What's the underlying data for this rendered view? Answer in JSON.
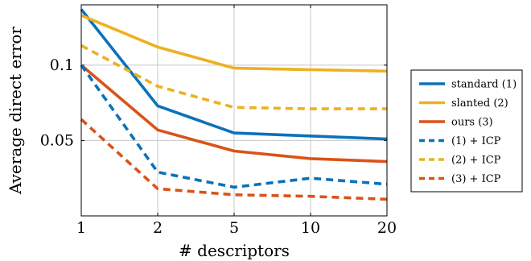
{
  "chart_data": {
    "type": "line",
    "xlabel": "# descriptors",
    "ylabel": "Average direct error",
    "categories": [
      "1",
      "2",
      "5",
      "10",
      "20"
    ],
    "y_ticks": [
      {
        "value": 0.05,
        "label": "0.05"
      },
      {
        "value": 0.1,
        "label": "0.1"
      }
    ],
    "ylim": [
      0,
      0.14
    ],
    "grid": true,
    "legend_position": "right",
    "series": [
      {
        "name": "standard (1)",
        "color": "#0a72ba",
        "dash": "solid",
        "values": [
          0.137,
          0.073,
          0.055,
          0.053,
          0.051
        ]
      },
      {
        "name": "slanted (2)",
        "color": "#edb120",
        "dash": "solid",
        "values": [
          0.133,
          0.112,
          0.098,
          0.097,
          0.096
        ]
      },
      {
        "name": "ours (3)",
        "color": "#d95319",
        "dash": "solid",
        "values": [
          0.1,
          0.057,
          0.043,
          0.038,
          0.036
        ]
      },
      {
        "name": "(1) + ICP",
        "color": "#0a72ba",
        "dash": "dashed",
        "values": [
          0.1,
          0.029,
          0.019,
          0.025,
          0.021
        ]
      },
      {
        "name": "(2) + ICP",
        "color": "#edb120",
        "dash": "dashed",
        "values": [
          0.113,
          0.086,
          0.072,
          0.071,
          0.071
        ]
      },
      {
        "name": "(3) + ICP",
        "color": "#d95319",
        "dash": "dashed",
        "values": [
          0.064,
          0.018,
          0.014,
          0.013,
          0.011
        ]
      }
    ]
  }
}
